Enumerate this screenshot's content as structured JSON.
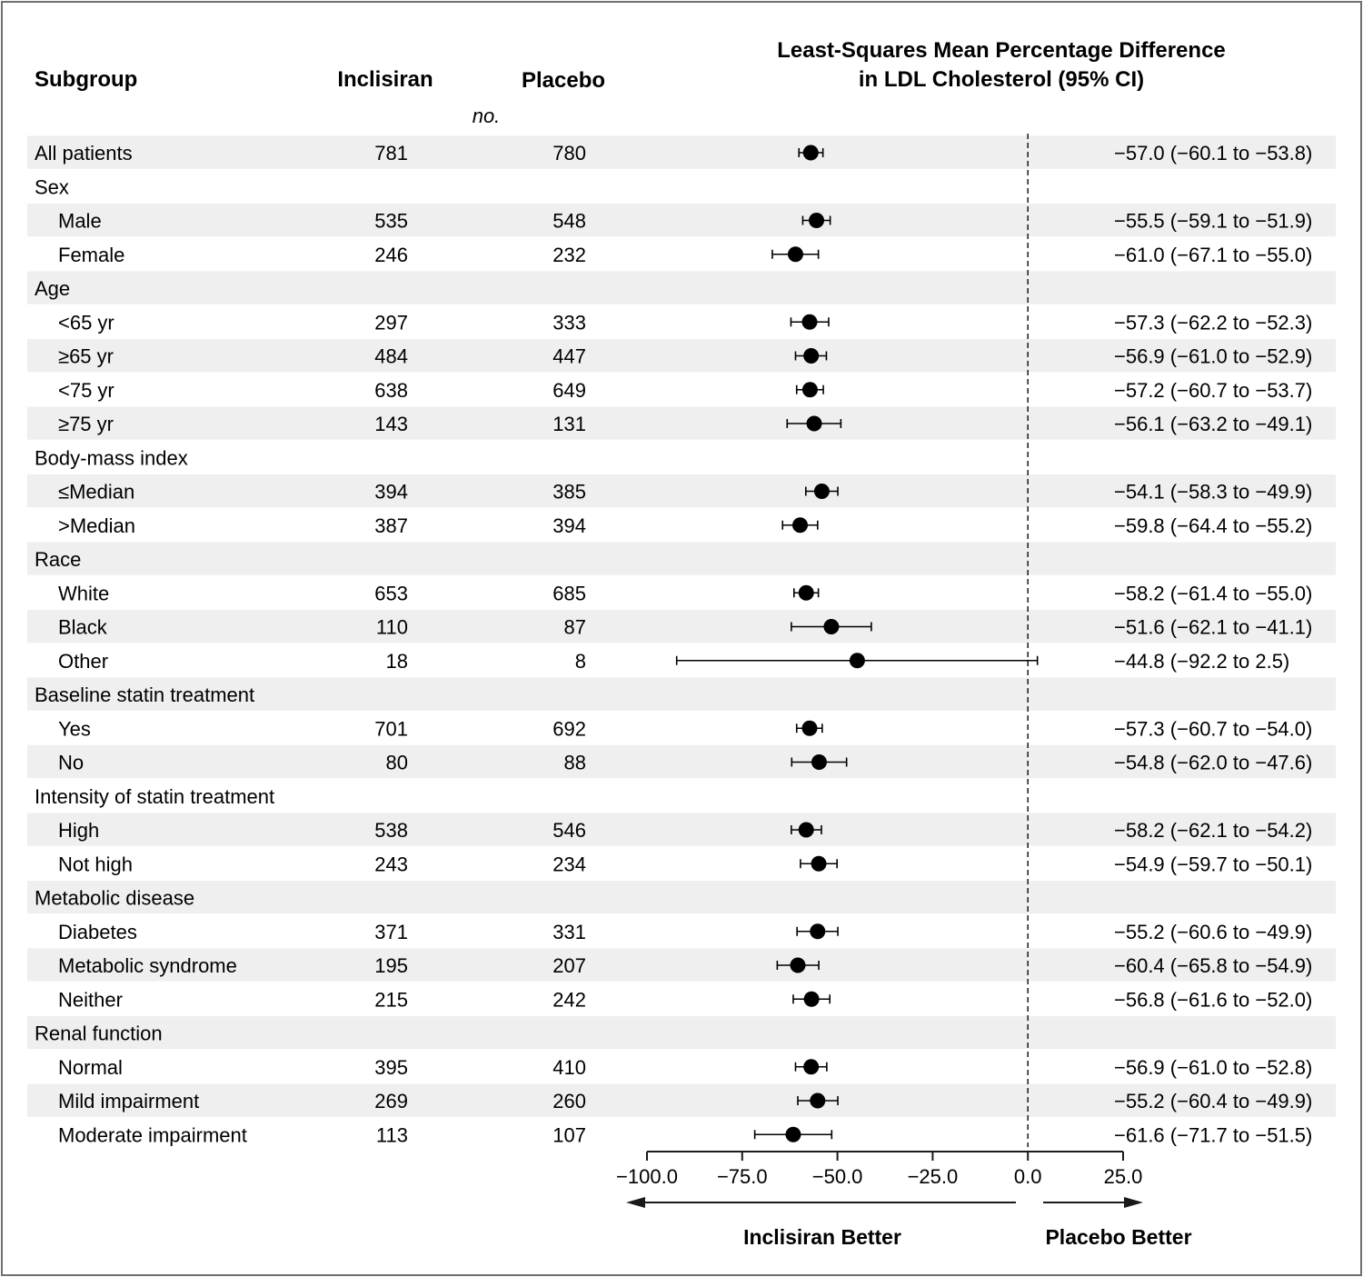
{
  "header": {
    "subgroup": "Subgroup",
    "treatment": "Inclisiran",
    "control": "Placebo",
    "count_unit": "no.",
    "effect_line1": "Least-Squares Mean Percentage Difference",
    "effect_line2": "in LDL Cholesterol (95% CI)"
  },
  "colors": {
    "shading": "#efefef",
    "marker": "#000000",
    "frame": "#6f6f6f"
  },
  "chart_data": {
    "type": "forest",
    "xlim": [
      -100.0,
      25.0
    ],
    "xticks": [
      -100.0,
      -75.0,
      -50.0,
      -25.0,
      0.0,
      25.0
    ],
    "xtick_labels": [
      "−100.0",
      "−75.0",
      "−50.0",
      "−25.0",
      "0.0",
      "25.0"
    ],
    "reference_line": 0.0,
    "left_arrow_label": "Inclisiran Better",
    "right_arrow_label": "Placebo Better",
    "rows": [
      {
        "label": "All patients",
        "indent": false,
        "shade": true,
        "n_trt": "781",
        "n_ctl": "780",
        "est": -57.0,
        "lo": -60.1,
        "hi": -53.8,
        "ci_text": "−57.0 (−60.1 to −53.8)"
      },
      {
        "label": "Sex",
        "indent": false,
        "shade": false
      },
      {
        "label": "Male",
        "indent": true,
        "shade": true,
        "n_trt": "535",
        "n_ctl": "548",
        "est": -55.5,
        "lo": -59.1,
        "hi": -51.9,
        "ci_text": "−55.5 (−59.1 to −51.9)"
      },
      {
        "label": "Female",
        "indent": true,
        "shade": false,
        "n_trt": "246",
        "n_ctl": "232",
        "est": -61.0,
        "lo": -67.1,
        "hi": -55.0,
        "ci_text": "−61.0 (−67.1 to −55.0)"
      },
      {
        "label": "Age",
        "indent": false,
        "shade": true
      },
      {
        "label": "<65 yr",
        "indent": true,
        "shade": false,
        "n_trt": "297",
        "n_ctl": "333",
        "est": -57.3,
        "lo": -62.2,
        "hi": -52.3,
        "ci_text": "−57.3 (−62.2 to −52.3)"
      },
      {
        "label": "≥65 yr",
        "indent": true,
        "shade": true,
        "n_trt": "484",
        "n_ctl": "447",
        "est": -56.9,
        "lo": -61.0,
        "hi": -52.9,
        "ci_text": "−56.9 (−61.0 to −52.9)"
      },
      {
        "label": "<75 yr",
        "indent": true,
        "shade": false,
        "n_trt": "638",
        "n_ctl": "649",
        "est": -57.2,
        "lo": -60.7,
        "hi": -53.7,
        "ci_text": "−57.2 (−60.7 to −53.7)"
      },
      {
        "label": "≥75 yr",
        "indent": true,
        "shade": true,
        "n_trt": "143",
        "n_ctl": "131",
        "est": -56.1,
        "lo": -63.2,
        "hi": -49.1,
        "ci_text": "−56.1 (−63.2 to −49.1)"
      },
      {
        "label": "Body-mass index",
        "indent": false,
        "shade": false
      },
      {
        "label": "≤Median",
        "indent": true,
        "shade": true,
        "n_trt": "394",
        "n_ctl": "385",
        "est": -54.1,
        "lo": -58.3,
        "hi": -49.9,
        "ci_text": "−54.1 (−58.3 to −49.9)"
      },
      {
        "label": ">Median",
        "indent": true,
        "shade": false,
        "n_trt": "387",
        "n_ctl": "394",
        "est": -59.8,
        "lo": -64.4,
        "hi": -55.2,
        "ci_text": "−59.8 (−64.4 to −55.2)"
      },
      {
        "label": "Race",
        "indent": false,
        "shade": true
      },
      {
        "label": "White",
        "indent": true,
        "shade": false,
        "n_trt": "653",
        "n_ctl": "685",
        "est": -58.2,
        "lo": -61.4,
        "hi": -55.0,
        "ci_text": "−58.2 (−61.4 to −55.0)"
      },
      {
        "label": "Black",
        "indent": true,
        "shade": true,
        "n_trt": "110",
        "n_ctl": "87",
        "est": -51.6,
        "lo": -62.1,
        "hi": -41.1,
        "ci_text": "−51.6 (−62.1 to −41.1)"
      },
      {
        "label": "Other",
        "indent": true,
        "shade": false,
        "n_trt": "18",
        "n_ctl": "8",
        "est": -44.8,
        "lo": -92.2,
        "hi": 2.5,
        "ci_text": "−44.8 (−92.2 to 2.5)"
      },
      {
        "label": "Baseline statin treatment",
        "indent": false,
        "shade": true
      },
      {
        "label": "Yes",
        "indent": true,
        "shade": false,
        "n_trt": "701",
        "n_ctl": "692",
        "est": -57.3,
        "lo": -60.7,
        "hi": -54.0,
        "ci_text": "−57.3 (−60.7 to −54.0)"
      },
      {
        "label": "No",
        "indent": true,
        "shade": true,
        "n_trt": "80",
        "n_ctl": "88",
        "est": -54.8,
        "lo": -62.0,
        "hi": -47.6,
        "ci_text": "−54.8 (−62.0 to −47.6)"
      },
      {
        "label": "Intensity of statin treatment",
        "indent": false,
        "shade": false
      },
      {
        "label": "High",
        "indent": true,
        "shade": true,
        "n_trt": "538",
        "n_ctl": "546",
        "est": -58.2,
        "lo": -62.1,
        "hi": -54.2,
        "ci_text": "−58.2 (−62.1 to −54.2)"
      },
      {
        "label": "Not high",
        "indent": true,
        "shade": false,
        "n_trt": "243",
        "n_ctl": "234",
        "est": -54.9,
        "lo": -59.7,
        "hi": -50.1,
        "ci_text": "−54.9 (−59.7 to −50.1)"
      },
      {
        "label": "Metabolic disease",
        "indent": false,
        "shade": true
      },
      {
        "label": "Diabetes",
        "indent": true,
        "shade": false,
        "n_trt": "371",
        "n_ctl": "331",
        "est": -55.2,
        "lo": -60.6,
        "hi": -49.9,
        "ci_text": "−55.2 (−60.6 to −49.9)"
      },
      {
        "label": "Metabolic syndrome",
        "indent": true,
        "shade": true,
        "n_trt": "195",
        "n_ctl": "207",
        "est": -60.4,
        "lo": -65.8,
        "hi": -54.9,
        "ci_text": "−60.4 (−65.8 to −54.9)"
      },
      {
        "label": "Neither",
        "indent": true,
        "shade": false,
        "n_trt": "215",
        "n_ctl": "242",
        "est": -56.8,
        "lo": -61.6,
        "hi": -52.0,
        "ci_text": "−56.8 (−61.6 to −52.0)"
      },
      {
        "label": "Renal function",
        "indent": false,
        "shade": true
      },
      {
        "label": "Normal",
        "indent": true,
        "shade": false,
        "n_trt": "395",
        "n_ctl": "410",
        "est": -56.9,
        "lo": -61.0,
        "hi": -52.8,
        "ci_text": "−56.9 (−61.0 to −52.8)"
      },
      {
        "label": "Mild impairment",
        "indent": true,
        "shade": true,
        "n_trt": "269",
        "n_ctl": "260",
        "est": -55.2,
        "lo": -60.4,
        "hi": -49.9,
        "ci_text": "−55.2 (−60.4 to −49.9)"
      },
      {
        "label": "Moderate impairment",
        "indent": true,
        "shade": false,
        "n_trt": "113",
        "n_ctl": "107",
        "est": -61.6,
        "lo": -71.7,
        "hi": -51.5,
        "ci_text": "−61.6 (−71.7 to −51.5)"
      }
    ]
  }
}
